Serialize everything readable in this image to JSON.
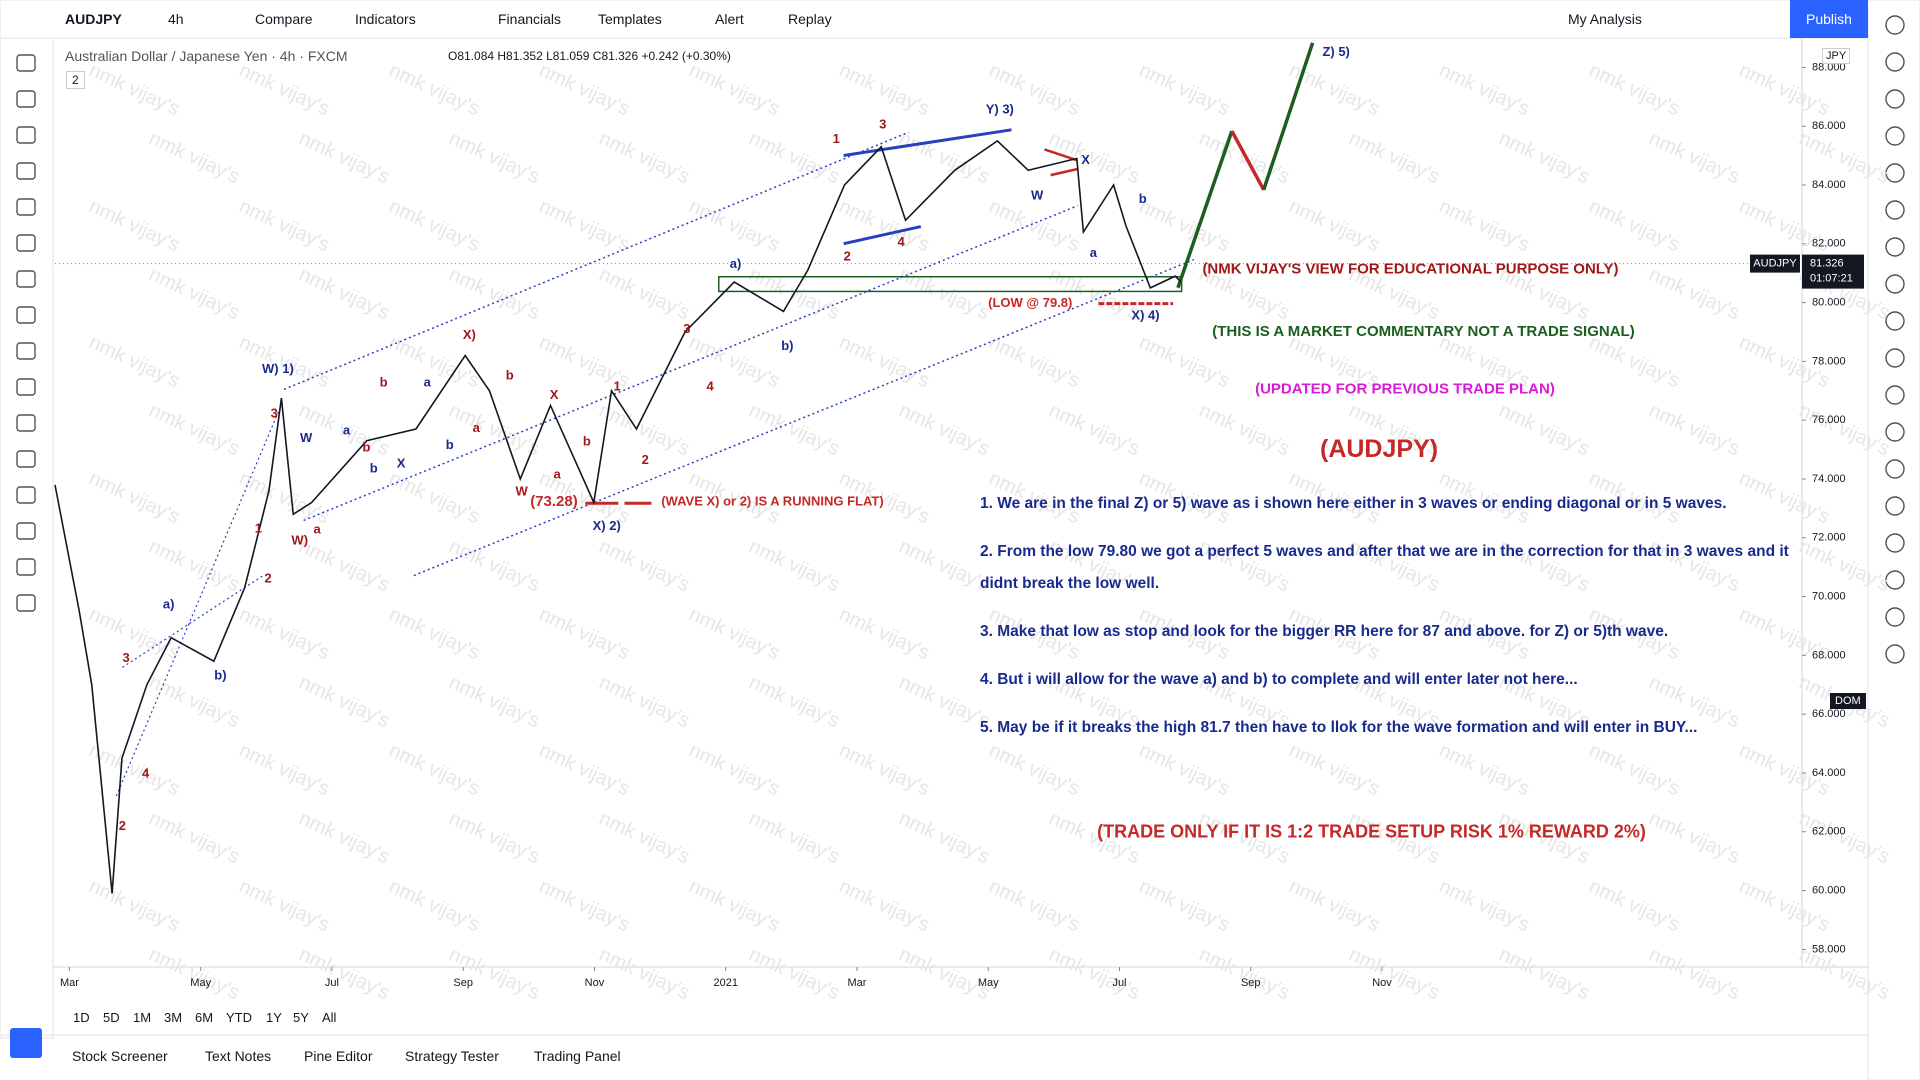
{
  "toolbar": {
    "symbol": "AUDJPY",
    "interval": "4h",
    "items": [
      "Compare",
      "Indicators",
      "Financials",
      "Templates",
      "Alert",
      "Replay"
    ],
    "layout": "My Analysis",
    "publish": "Publish"
  },
  "legend": {
    "title": "Australian Dollar / Japanese Yen · 4h · FXCM",
    "ohlc": "O81.084 H81.352 L81.059 C81.326 +0.242 (+0.30%)",
    "badge": "2",
    "currency": "JPY"
  },
  "chart_data": {
    "type": "line",
    "x": [
      -0.22,
      0.15,
      0.34,
      0.65,
      0.8,
      1.18,
      1.55,
      2.2,
      2.67,
      3.04,
      3.23,
      3.41,
      3.69,
      4.53,
      5.28,
      6.03,
      6.4,
      6.87,
      7.33,
      7.99,
      8.26,
      8.64,
      9.38,
      10.13,
      10.88,
      11.25,
      11.81,
      12.37,
      12.74,
      13.49,
      14.14,
      14.61,
      15.35,
      15.45,
      15.91,
      16.1,
      16.47,
      16.85,
      16.94
    ],
    "series": [
      {
        "color": "#131722",
        "values": [
          73.8,
          69.5,
          67,
          59.9,
          64.5,
          67,
          68.6,
          67.8,
          70.3,
          73.6,
          76.75,
          72.8,
          73.2,
          75.3,
          75.7,
          78.2,
          77,
          74,
          76.5,
          73.2,
          77,
          75.7,
          79,
          80.7,
          79.7,
          81.1,
          84,
          85.3,
          82.8,
          84.5,
          85.5,
          84.5,
          84.9,
          82.4,
          84,
          82.6,
          80.5,
          80.9,
          80.7
        ]
      }
    ],
    "xlim": [
      -0.22,
      26.4
    ],
    "ylim": [
      57.4,
      89
    ],
    "xticks": [
      {
        "value": 0,
        "label": "Mar"
      },
      {
        "value": 2,
        "label": "May"
      },
      {
        "value": 4,
        "label": "Jul"
      },
      {
        "value": 6,
        "label": "Sep"
      },
      {
        "value": 8,
        "label": "Nov"
      },
      {
        "value": 10,
        "label": "2021"
      },
      {
        "value": 12,
        "label": "Mar"
      },
      {
        "value": 14,
        "label": "May"
      },
      {
        "value": 16,
        "label": "Jul"
      },
      {
        "value": 18,
        "label": "Sep"
      },
      {
        "value": 20,
        "label": "Nov"
      }
    ],
    "yticks": [
      {
        "value": 58,
        "label": "58.000"
      },
      {
        "value": 60,
        "label": "60.000"
      },
      {
        "value": 62,
        "label": "62.000"
      },
      {
        "value": 64,
        "label": "64.000"
      },
      {
        "value": 66,
        "label": "66.000"
      },
      {
        "value": 68,
        "label": "68.000"
      },
      {
        "value": 70,
        "label": "70.000"
      },
      {
        "value": 72,
        "label": "72.000"
      },
      {
        "value": 74,
        "label": "74.000"
      },
      {
        "value": 76,
        "label": "76.000"
      },
      {
        "value": 78,
        "label": "78.000"
      },
      {
        "value": 80,
        "label": "80.000"
      },
      {
        "value": 82,
        "label": "82.000"
      },
      {
        "value": 84,
        "label": "84.000"
      },
      {
        "value": 86,
        "label": "86.000"
      },
      {
        "value": 88,
        "label": "88.000"
      }
    ],
    "grid": false,
    "price_label": {
      "symbol": "AUDJPY",
      "price": 81.326,
      "timer": "01:07:21"
    }
  },
  "annotations": {
    "view": "(NMK VIJAY'S VIEW FOR EDUCATIONAL PURPOSE ONLY)",
    "commentary": "(THIS IS A MARKET COMMENTARY NOT A TRADE SIGNAL)",
    "updated": "(UPDATED FOR PREVIOUS TRADE PLAN)",
    "pair": "(AUDJPY)",
    "trade_rule": "(TRADE ONLY IF IT IS 1:2 TRADE SETUP RISK 1% REWARD 2%)",
    "running_flat": "(WAVE X) or 2) IS A RUNNING FLAT)",
    "low_7328": "(73.28)",
    "low_798": "(LOW @ 79.8)"
  },
  "wave_labels": [
    "Z) 5)",
    "Y) 3)",
    "1",
    "3",
    "2",
    "4",
    "W",
    "X",
    "a",
    "b",
    "X) 4)",
    "a)",
    "b)",
    "3",
    "4",
    "1",
    "2",
    "X)",
    "b",
    "a",
    "X",
    "a",
    "b",
    "W",
    "a",
    "b",
    "X) 2)",
    "W) 1)",
    "3",
    "W",
    "a",
    "b",
    "X",
    "b",
    "b",
    "W)",
    "a",
    "1",
    "2",
    "a)",
    "b)",
    "3",
    "4",
    "2"
  ],
  "notes": [
    "1. We are in the final Z) or 5) wave as i shown here either in 3 waves or ending diagonal or in 5 waves.",
    "2. From the low 79.80 we got a perfect 5 waves and after that we are in the correction for that in 3 waves and it didnt break the low well.",
    "3. Make that low as stop and look for the bigger RR here for 87 and above. for Z) or 5)th wave.",
    "4. But i will allow for the wave a) and b) to complete and will enter later not here...",
    "5. May be if it breaks the high 81.7 then have to llok for the wave formation and will enter in BUY..."
  ],
  "timeframes": [
    "1D",
    "5D",
    "1M",
    "3M",
    "6M",
    "YTD",
    "1Y",
    "5Y",
    "All"
  ],
  "bottom_tabs": [
    "Stock Screener",
    "Text Notes",
    "Pine Editor",
    "Strategy Tester",
    "Trading Panel"
  ],
  "dom": "DOM",
  "watermark": "nmk vijay's"
}
